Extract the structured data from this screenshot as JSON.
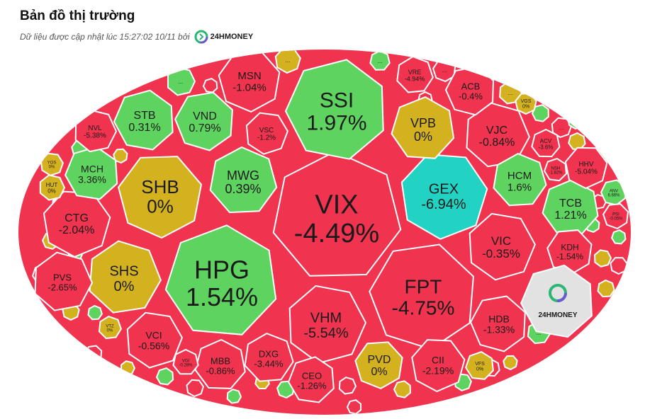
{
  "header": {
    "title": "Bản đồ thị trường",
    "subtitle": "Dữ liệu được cập nhật lúc 15:27:02 10/11 bởi",
    "brand": "24HMONEY"
  },
  "colors": {
    "up": "#5fd35f",
    "down": "#f0344f",
    "flat": "#d4b21f",
    "floor": "#22d3c4",
    "logo_bg": "#e2e2e2"
  },
  "logo_tile": {
    "label": "24HMONEY"
  },
  "more_label": "...",
  "chart_data": {
    "type": "treemap",
    "title": "Bản đồ thị trường",
    "tiles": [
      {
        "ticker": "VIX",
        "change": "-4.49%",
        "state": "down"
      },
      {
        "ticker": "HPG",
        "change": "1.54%",
        "state": "up"
      },
      {
        "ticker": "SSI",
        "change": "1.97%",
        "state": "up"
      },
      {
        "ticker": "FPT",
        "change": "-4.75%",
        "state": "down"
      },
      {
        "ticker": "SHB",
        "change": "0%",
        "state": "flat"
      },
      {
        "ticker": "GEX",
        "change": "-6.94%",
        "state": "floor"
      },
      {
        "ticker": "VHM",
        "change": "-5.54%",
        "state": "down"
      },
      {
        "ticker": "SHS",
        "change": "0%",
        "state": "flat"
      },
      {
        "ticker": "MWG",
        "change": "0.39%",
        "state": "up"
      },
      {
        "ticker": "VPB",
        "change": "0%",
        "state": "flat"
      },
      {
        "ticker": "STB",
        "change": "0.31%",
        "state": "up"
      },
      {
        "ticker": "VND",
        "change": "0.79%",
        "state": "up"
      },
      {
        "ticker": "MSN",
        "change": "-1.04%",
        "state": "down"
      },
      {
        "ticker": "CTG",
        "change": "-2.04%",
        "state": "down"
      },
      {
        "ticker": "VIC",
        "change": "-0.35%",
        "state": "down"
      },
      {
        "ticker": "VJC",
        "change": "-0.84%",
        "state": "down"
      },
      {
        "ticker": "HCM",
        "change": "1.6%",
        "state": "up"
      },
      {
        "ticker": "TCB",
        "change": "1.21%",
        "state": "up"
      },
      {
        "ticker": "MCH",
        "change": "3.36%",
        "state": "up"
      },
      {
        "ticker": "HDB",
        "change": "-1.33%",
        "state": "down"
      },
      {
        "ticker": "PVD",
        "change": "0%",
        "state": "flat"
      },
      {
        "ticker": "CII",
        "change": "-2.19%",
        "state": "down"
      },
      {
        "ticker": "VCI",
        "change": "-0.56%",
        "state": "down"
      },
      {
        "ticker": "PVS",
        "change": "-2.65%",
        "state": "down"
      },
      {
        "ticker": "DXG",
        "change": "-3.44%",
        "state": "down"
      },
      {
        "ticker": "MBB",
        "change": "-0.86%",
        "state": "down"
      },
      {
        "ticker": "CEO",
        "change": "-1.26%",
        "state": "down"
      },
      {
        "ticker": "ACB",
        "change": "-0.4%",
        "state": "down"
      },
      {
        "ticker": "KDH",
        "change": "-1.54%",
        "state": "down"
      },
      {
        "ticker": "HHV",
        "change": "-5.04%",
        "state": "down"
      },
      {
        "ticker": "VSC",
        "change": "-1.2%",
        "state": "down"
      },
      {
        "ticker": "NVL",
        "change": "-5.38%",
        "state": "down"
      },
      {
        "ticker": "VRE",
        "change": "-4.94%",
        "state": "down"
      },
      {
        "ticker": "ACV",
        "change": "-3.6%",
        "state": "down"
      },
      {
        "ticker": "NSH",
        "change": "-1.82%",
        "state": "down"
      },
      {
        "ticker": "ANV",
        "change": "6.66%",
        "state": "up"
      },
      {
        "ticker": "PSI",
        "change": "-0.05%",
        "state": "down"
      },
      {
        "ticker": "VGS",
        "change": "0%",
        "state": "flat"
      },
      {
        "ticker": "YOS",
        "change": "0%",
        "state": "flat"
      },
      {
        "ticker": "HUT",
        "change": "0%",
        "state": "flat"
      },
      {
        "ticker": "VTZ",
        "change": "0%",
        "state": "flat"
      },
      {
        "ticker": "VGI",
        "change": "-0.28%",
        "state": "down"
      },
      {
        "ticker": "VFS",
        "change": "0%",
        "state": "flat"
      }
    ]
  }
}
